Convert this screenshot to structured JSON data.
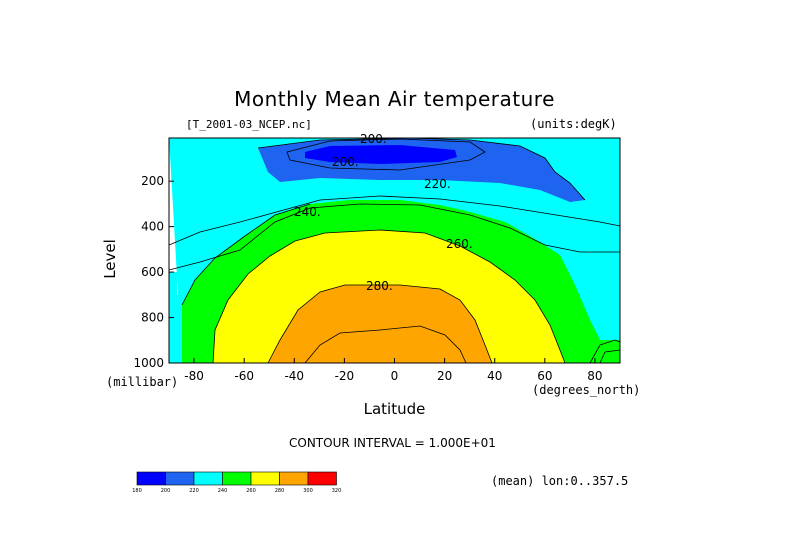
{
  "title": "Monthly Mean Air temperature",
  "file_label": "[T_2001-03_NCEP.nc]",
  "units_label": "(units:degK)",
  "ylabel": "Level",
  "y_unit": "(millibar)",
  "xlabel": "Latitude",
  "x_unit": "(degrees_north)",
  "contour_interval": "CONTOUR INTERVAL = 1.000E+01",
  "mean_note": "(mean) lon:0..357.5",
  "chart_data": {
    "type": "contour",
    "x_ticks": [
      "-80",
      "-60",
      "-40",
      "-20",
      "0",
      "20",
      "40",
      "60",
      "80"
    ],
    "y_ticks": [
      "200",
      "400",
      "600",
      "800",
      "1000"
    ],
    "xlim": [
      -90,
      90
    ],
    "ylim": [
      1000,
      10
    ],
    "contour_labels": [
      "200.",
      "200.",
      "220.",
      "240.",
      "260.",
      "280."
    ],
    "contour_levels": [
      180,
      200,
      220,
      240,
      260,
      280,
      300,
      320
    ],
    "colorbar": {
      "ticks": [
        "180",
        "200",
        "220",
        "240",
        "260",
        "280",
        "300",
        "320"
      ],
      "colors": [
        "#0000ff",
        "#1e64f0",
        "#00ffff",
        "#00ff00",
        "#ffff00",
        "#ffa500",
        "#ff0000"
      ]
    },
    "colors": {
      "band_180_200": "#0000ff",
      "band_200_220": "#1e64f0",
      "band_220_240": "#00ffff",
      "band_240_260": "#00ff00",
      "band_260_280": "#ffff00",
      "band_280_300": "#ffa500"
    }
  }
}
